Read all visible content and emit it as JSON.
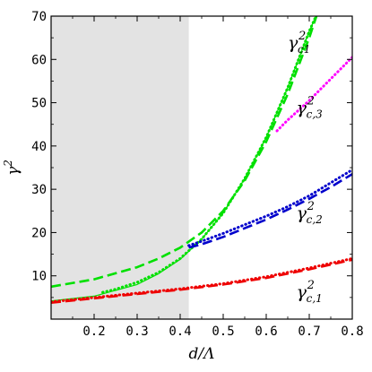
{
  "chart_data": {
    "type": "line",
    "xlim": [
      0.1,
      0.8
    ],
    "ylim": [
      0,
      70
    ],
    "grid": false,
    "x_ticks": [
      0.2,
      0.3,
      0.4,
      0.5,
      0.6,
      0.7,
      0.8
    ],
    "x_tick_labels": [
      "0.2",
      "0.3",
      "0.4",
      "0.5",
      "0.6",
      "0.7",
      "0.8"
    ],
    "y_ticks": [
      10,
      20,
      30,
      40,
      50,
      60,
      70
    ],
    "y_tick_labels": [
      "10",
      "20",
      "30",
      "40",
      "50",
      "60",
      "70"
    ],
    "xlabel": {
      "main": "d/Λ"
    },
    "ylabel": {
      "base": "γ",
      "sup": "2"
    },
    "shaded_region": {
      "x0": 0.1,
      "x1": 0.42,
      "color": "#e3e3e3"
    },
    "series": [
      {
        "style": "solid",
        "color": "#00e000",
        "x": [
          0.1,
          0.2,
          0.3,
          0.35,
          0.4,
          0.45,
          0.5,
          0.55,
          0.6,
          0.65,
          0.7,
          0.72
        ],
        "y": [
          4.2,
          5.3,
          8.0,
          10.5,
          13.8,
          18.5,
          24.5,
          32.5,
          42.0,
          53.5,
          66.5,
          71
        ]
      },
      {
        "style": "dashed",
        "color": "#00e000",
        "x": [
          0.1,
          0.2,
          0.3,
          0.35,
          0.4,
          0.45,
          0.5,
          0.55,
          0.6,
          0.65,
          0.7,
          0.72
        ],
        "y": [
          7.5,
          9.2,
          12.0,
          14.0,
          16.5,
          20.0,
          25.0,
          32.0,
          41.0,
          52.0,
          65.0,
          71
        ]
      },
      {
        "style": "dotted",
        "color": "#00e000",
        "x": [
          0.22,
          0.25,
          0.3,
          0.35,
          0.4,
          0.45,
          0.5,
          0.55,
          0.6,
          0.65,
          0.7,
          0.72
        ],
        "y": [
          6.2,
          6.9,
          8.5,
          10.8,
          14.0,
          18.5,
          24.5,
          32.5,
          42.0,
          53.5,
          66.5,
          71
        ]
      },
      {
        "style": "dotted",
        "color": "#ff00ff",
        "x": [
          0.625,
          0.65,
          0.7,
          0.75,
          0.8
        ],
        "y": [
          43.5,
          46.0,
          50.5,
          55.5,
          60.5
        ]
      },
      {
        "style": "dotted",
        "color": "#0000cc",
        "x": [
          0.42,
          0.45,
          0.5,
          0.55,
          0.6,
          0.65,
          0.7,
          0.75,
          0.8
        ],
        "y": [
          17.0,
          18.0,
          19.8,
          21.8,
          23.8,
          26.0,
          28.5,
          31.5,
          34.5
        ]
      },
      {
        "style": "dashed",
        "color": "#0000cc",
        "x": [
          0.42,
          0.45,
          0.5,
          0.55,
          0.6,
          0.65,
          0.7,
          0.75,
          0.8
        ],
        "y": [
          16.5,
          17.3,
          19.0,
          21.0,
          23.0,
          25.3,
          27.8,
          30.5,
          33.5
        ]
      },
      {
        "style": "dotted",
        "color": "#ee0000",
        "x": [
          0.1,
          0.2,
          0.3,
          0.4,
          0.5,
          0.6,
          0.7,
          0.8
        ],
        "y": [
          4.0,
          5.0,
          6.0,
          7.0,
          8.2,
          9.8,
          11.8,
          14.0
        ]
      },
      {
        "style": "dashed",
        "color": "#ee0000",
        "x": [
          0.1,
          0.2,
          0.3,
          0.4,
          0.5,
          0.6,
          0.7,
          0.8
        ],
        "y": [
          3.8,
          4.8,
          5.8,
          6.8,
          8.0,
          9.5,
          11.5,
          13.7
        ]
      }
    ],
    "annotations": [
      {
        "base": "γ",
        "sup": "2",
        "sub": "c1",
        "x": 0.65,
        "y": 62.5
      },
      {
        "base": "γ",
        "sup": "2",
        "sub": "c,3",
        "x": 0.67,
        "y": 47.5
      },
      {
        "base": "γ",
        "sup": "2",
        "sub": "c,2",
        "x": 0.67,
        "y": 23.2
      },
      {
        "base": "γ",
        "sup": "2",
        "sub": "c,1",
        "x": 0.67,
        "y": 5.0
      }
    ]
  }
}
